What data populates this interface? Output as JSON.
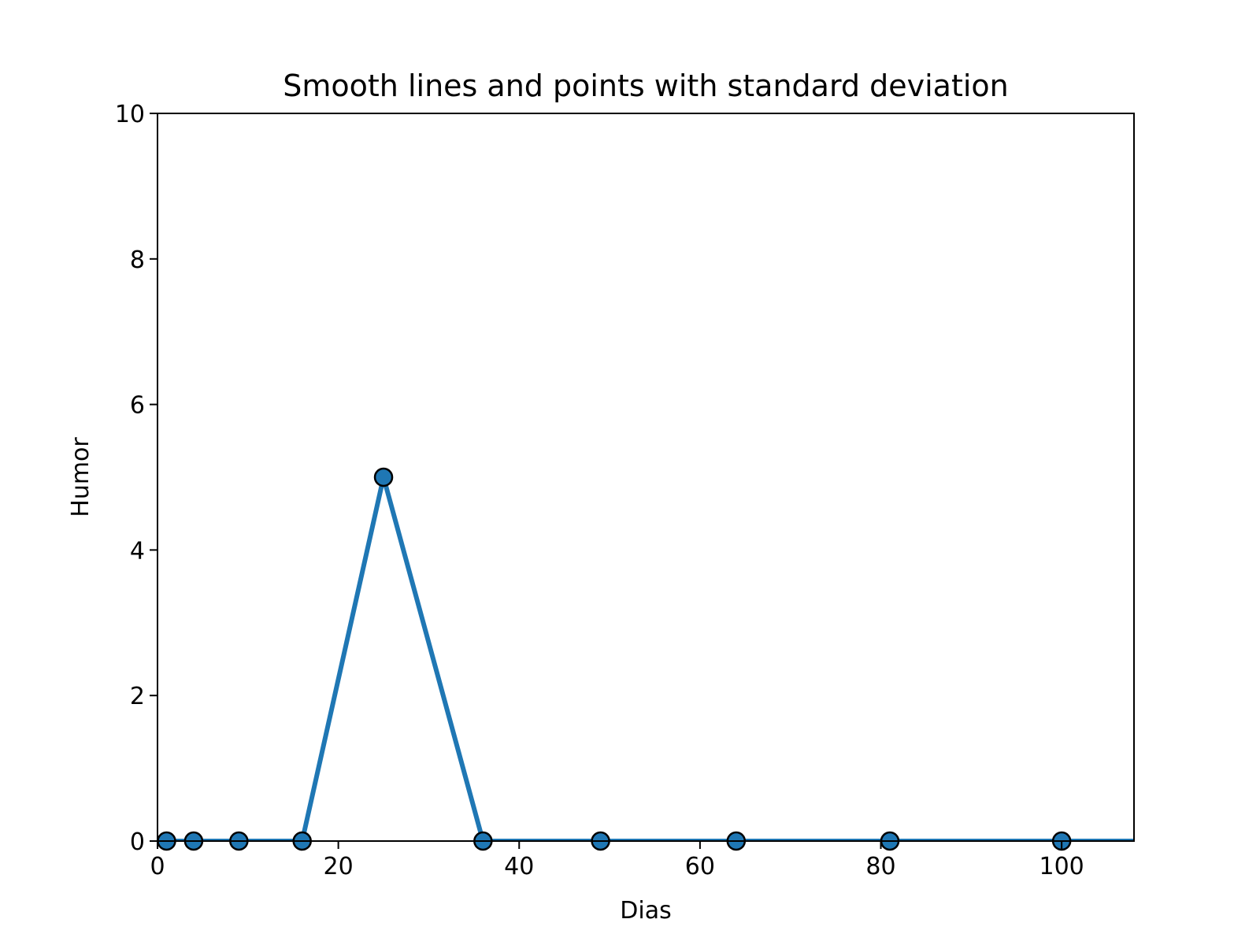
{
  "chart_data": {
    "type": "line",
    "title": "Smooth lines and points with standard deviation",
    "xlabel": "Dias",
    "ylabel": "Humor",
    "xlim": [
      0,
      108
    ],
    "ylim": [
      0,
      10
    ],
    "xticks": [
      0,
      20,
      40,
      60,
      80,
      100
    ],
    "yticks": [
      0,
      2,
      4,
      6,
      8,
      10
    ],
    "grid": false,
    "series": [
      {
        "color": "#1f77b4",
        "marker": "circle",
        "x": [
          1,
          4,
          9,
          16,
          25,
          36,
          49,
          64,
          81,
          100
        ],
        "y": [
          0,
          0,
          0,
          0,
          5,
          0,
          0,
          0,
          0,
          0
        ],
        "line_extends_to_x": 108
      }
    ]
  }
}
